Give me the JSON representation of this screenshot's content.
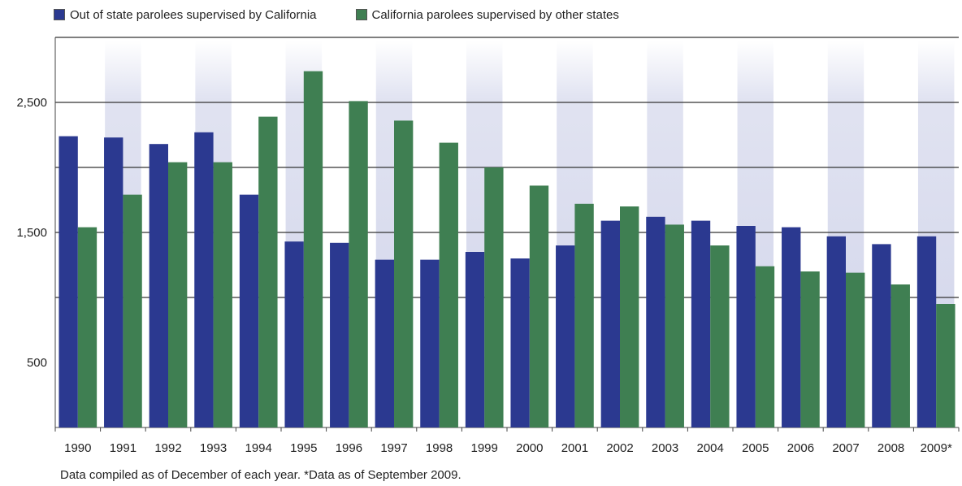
{
  "chart_data": {
    "type": "bar",
    "categories": [
      "1990",
      "1991",
      "1992",
      "1993",
      "1994",
      "1995",
      "1996",
      "1997",
      "1998",
      "1999",
      "2000",
      "2001",
      "2002",
      "2003",
      "2004",
      "2005",
      "2006",
      "2007",
      "2008",
      "2009*"
    ],
    "series": [
      {
        "name": "Out of state parolees supervised by California",
        "values": [
          2240,
          2230,
          2180,
          2270,
          1790,
          1430,
          1420,
          1290,
          1290,
          1350,
          1300,
          1400,
          1590,
          1620,
          1590,
          1550,
          1540,
          1470,
          1410,
          1470
        ]
      },
      {
        "name": "California parolees supervised by other states",
        "values": [
          1540,
          1790,
          2040,
          2040,
          2390,
          2740,
          2510,
          2360,
          2190,
          2000,
          1860,
          1720,
          1700,
          1560,
          1400,
          1240,
          1200,
          1190,
          1100,
          950
        ]
      }
    ],
    "yticks": [
      500,
      1500,
      2500
    ],
    "ylim": [
      0,
      3000
    ],
    "gridlines": [
      1000,
      1500,
      2000,
      2500,
      3000
    ],
    "grid": true,
    "legend_position": "top-left",
    "colors": [
      "#2b3990",
      "#3f7f52"
    ],
    "footnote": "Data compiled as of December of each year.  *Data as of September 2009."
  }
}
